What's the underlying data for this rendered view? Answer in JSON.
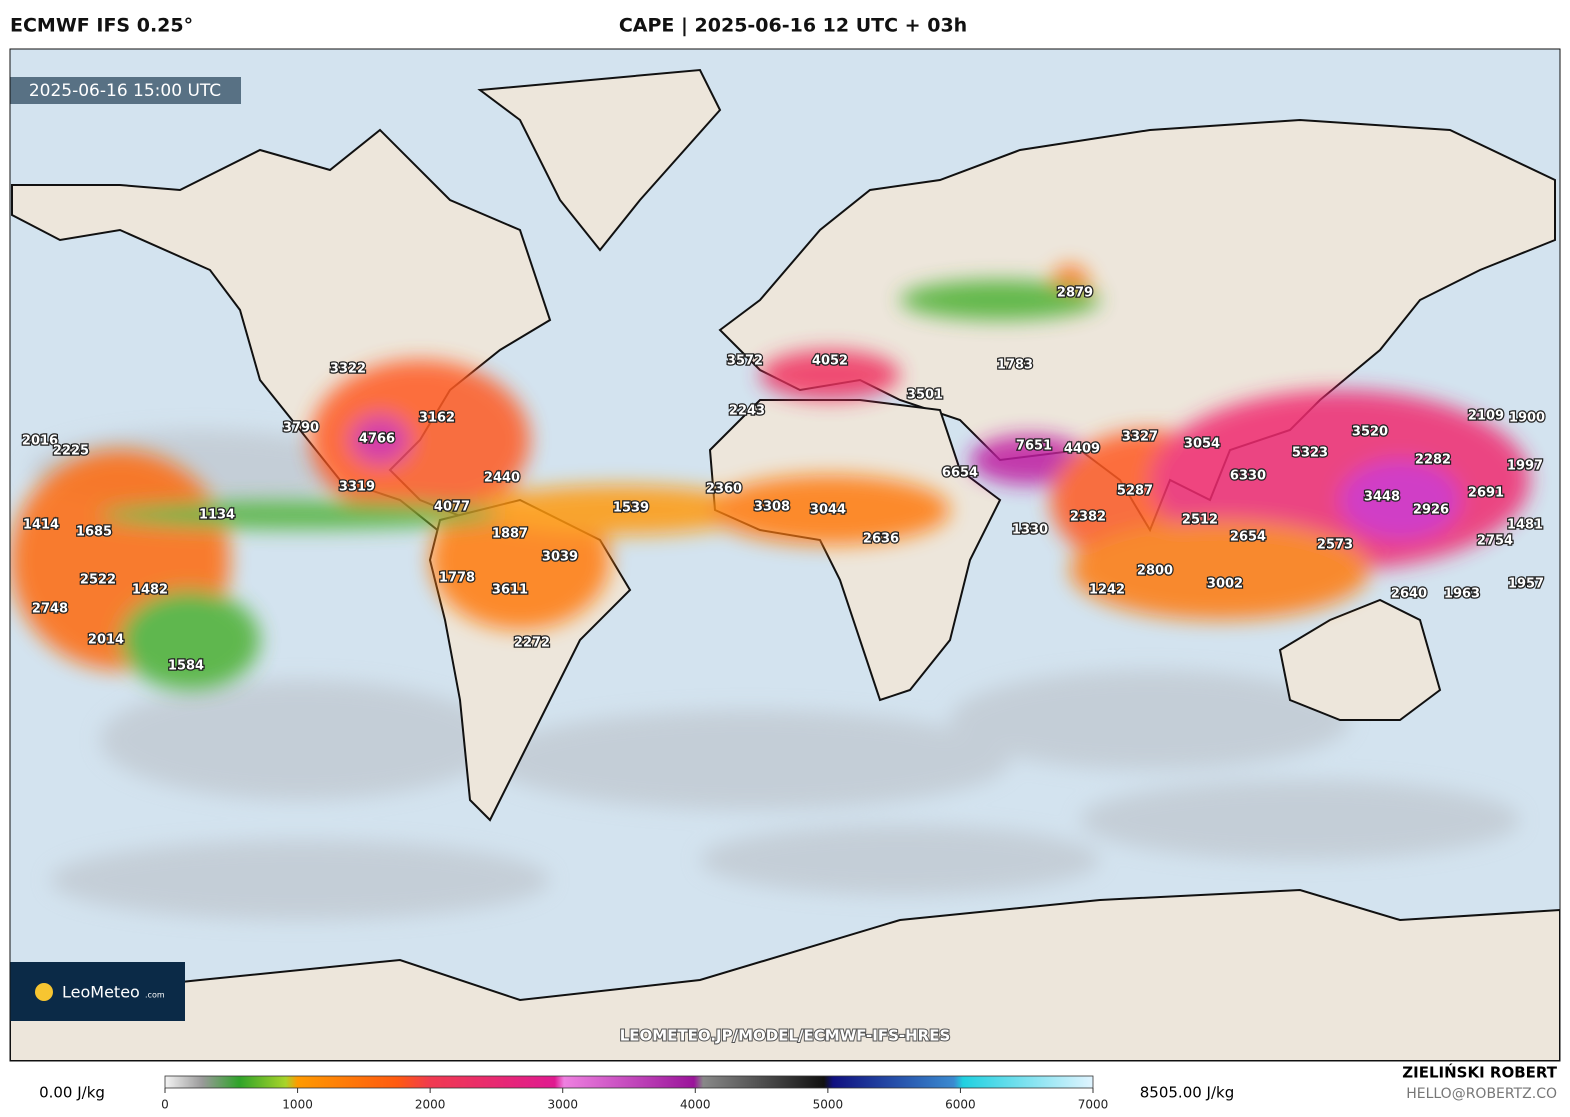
{
  "header": {
    "model": "ECMWF IFS 0.25°",
    "title": "CAPE | 2025-06-16 12 UTC + 03h"
  },
  "map": {
    "valid_time": "2025-06-16 15:00 UTC",
    "watermark": "LEOMETEO.JP/MODEL/ECMWF-IFS-HRES",
    "logo": {
      "name": "LeoMeteo",
      "suffix": ".com"
    },
    "labels": [
      "2879",
      "3572",
      "4052",
      "1783",
      "3322",
      "3501",
      "2243",
      "3162",
      "3790",
      "4766",
      "2109",
      "1900",
      "3520",
      "2016",
      "2225",
      "3327",
      "3054",
      "7651",
      "4409",
      "5323",
      "2282",
      "1997",
      "6654",
      "6330",
      "2440",
      "3319",
      "2360",
      "5287",
      "3448",
      "2691",
      "4077",
      "3308",
      "3044",
      "1539",
      "2926",
      "1134",
      "2382",
      "2512",
      "1414",
      "1685",
      "1330",
      "1887",
      "2636",
      "2654",
      "1481",
      "2754",
      "2573",
      "3039",
      "1778",
      "2800",
      "2522",
      "3611",
      "1482",
      "1242",
      "3002",
      "1957",
      "2640",
      "1963",
      "2748",
      "2014",
      "2272",
      "1584"
    ]
  },
  "colorbar": {
    "min_label": "0.00 J/kg",
    "max_label": "8505.00 J/kg",
    "range": [
      0,
      7000
    ],
    "ticks": [
      0,
      1000,
      2000,
      3000,
      4000,
      5000,
      6000,
      7000
    ]
  },
  "footer": {
    "author": "ZIELIŃSKI ROBERT",
    "contact": "HELLO@ROBERTZ.CO"
  }
}
